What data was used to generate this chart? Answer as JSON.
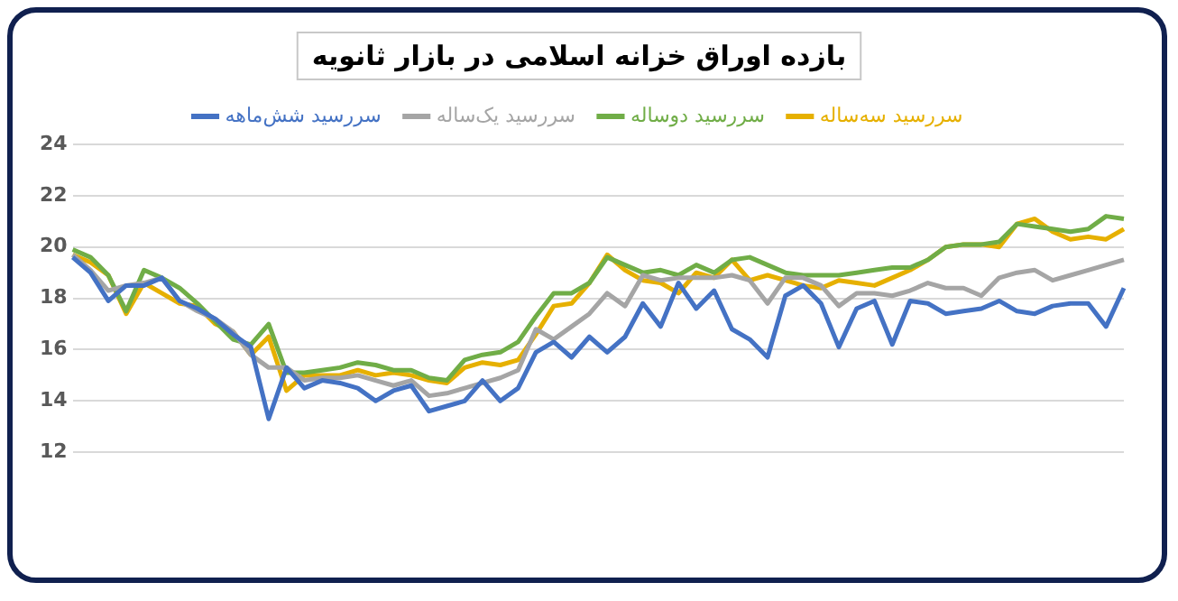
{
  "chart_data": {
    "type": "line",
    "title": "بازده اوراق خزانه اسلامی در بازار ثانویه",
    "categories": [
      null,
      null,
      null,
      null,
      null,
      null,
      null,
      null,
      null,
      null,
      null,
      null,
      null,
      null,
      null,
      null,
      null,
      null,
      null,
      null,
      null,
      null,
      null,
      null,
      null,
      null,
      null,
      null,
      null,
      null,
      null,
      null,
      null,
      null,
      null,
      null,
      null,
      null,
      null,
      null,
      null,
      null,
      null,
      null,
      null,
      null,
      null,
      null,
      null,
      null,
      null,
      null,
      null,
      null,
      null,
      null,
      null,
      null,
      null,
      null
    ],
    "ylim": [
      12,
      24
    ],
    "yticks": [
      12,
      14,
      16,
      18,
      20,
      22,
      24
    ],
    "grid": "y",
    "legend": "top",
    "marker": "none",
    "line_style": "solid",
    "series": [
      {
        "name": "سررسید شش‌ماهه",
        "color": "#4472c4",
        "values": [
          19.6,
          19.0,
          17.9,
          18.5,
          18.5,
          18.8,
          17.9,
          17.6,
          17.2,
          16.6,
          16.1,
          13.3,
          15.3,
          14.5,
          14.8,
          14.7,
          14.5,
          14.0,
          14.4,
          14.6,
          13.6,
          13.8,
          14.0,
          14.8,
          14.0,
          14.5,
          15.9,
          16.3,
          15.7,
          16.5,
          15.9,
          16.5,
          17.8,
          16.9,
          18.6,
          17.6,
          18.3,
          16.8,
          16.4,
          15.7,
          18.1,
          18.5,
          17.8,
          16.1,
          17.6,
          17.9,
          16.2,
          17.9,
          17.8,
          17.4,
          17.5,
          17.6,
          17.9,
          17.5,
          17.4,
          17.7,
          17.8,
          17.8,
          16.9,
          18.4
        ]
      },
      {
        "name": "سررسید یک‌ساله",
        "color": "#a5a5a5",
        "values": [
          19.7,
          19.1,
          18.3,
          18.5,
          18.6,
          18.8,
          17.9,
          17.5,
          17.2,
          16.7,
          15.8,
          15.3,
          15.3,
          14.8,
          14.9,
          14.9,
          15.0,
          14.8,
          14.6,
          14.8,
          14.2,
          14.3,
          14.5,
          14.7,
          14.9,
          15.2,
          16.8,
          16.4,
          16.9,
          17.4,
          18.2,
          17.7,
          18.9,
          18.7,
          18.8,
          18.8,
          18.8,
          18.9,
          18.7,
          17.8,
          18.8,
          18.8,
          18.5,
          17.7,
          18.2,
          18.2,
          18.1,
          18.3,
          18.6,
          18.4,
          18.4,
          18.1,
          18.8,
          19.0,
          19.1,
          18.7,
          18.9,
          19.1,
          19.3,
          19.5
        ]
      },
      {
        "name": "سررسید دوساله",
        "color": "#70ad47",
        "values": [
          19.9,
          19.6,
          18.9,
          17.5,
          19.1,
          18.8,
          18.4,
          17.8,
          17.1,
          16.4,
          16.2,
          17.0,
          15.1,
          15.1,
          15.2,
          15.3,
          15.5,
          15.4,
          15.2,
          15.2,
          14.9,
          14.8,
          15.6,
          15.8,
          15.9,
          16.3,
          17.3,
          18.2,
          18.2,
          18.6,
          19.6,
          19.3,
          19.0,
          19.1,
          18.9,
          19.3,
          19.0,
          19.5,
          19.6,
          19.3,
          19.0,
          18.9,
          18.9,
          18.9,
          19.0,
          19.1,
          19.2,
          19.2,
          19.5,
          20.0,
          20.1,
          20.1,
          20.2,
          20.9,
          20.8,
          20.7,
          20.6,
          20.7,
          21.2,
          21.1
        ]
      },
      {
        "name": "سررسید سه‌ساله",
        "color": "#e6b000",
        "values": [
          19.7,
          19.4,
          18.9,
          17.4,
          18.6,
          18.2,
          17.8,
          17.7,
          17.0,
          16.7,
          15.8,
          16.5,
          14.4,
          15.0,
          15.0,
          15.0,
          15.2,
          15.0,
          15.1,
          15.0,
          14.8,
          14.7,
          15.3,
          15.5,
          15.4,
          15.6,
          16.6,
          17.7,
          17.8,
          18.6,
          19.7,
          19.1,
          18.7,
          18.6,
          18.2,
          19.0,
          18.8,
          19.5,
          18.7,
          18.9,
          18.7,
          18.5,
          18.4,
          18.7,
          18.6,
          18.5,
          18.8,
          19.1,
          19.5,
          20.0,
          20.1,
          20.1,
          20.0,
          20.9,
          21.1,
          20.6,
          20.3,
          20.4,
          20.3,
          20.7
        ]
      }
    ]
  }
}
